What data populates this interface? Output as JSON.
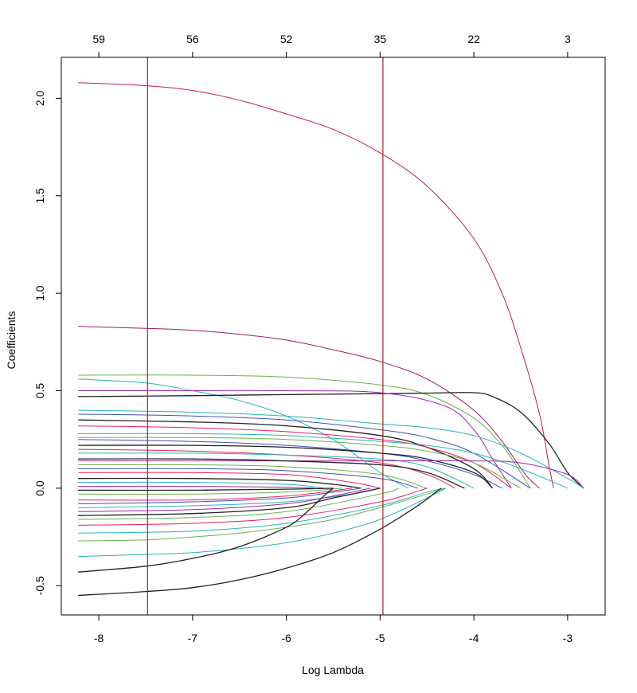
{
  "chart_data": {
    "type": "line",
    "title": "",
    "xlabel": "Log Lambda",
    "ylabel": "Coefficients",
    "xlim": [
      -8.4,
      -2.6
    ],
    "ylim": [
      -0.65,
      2.21
    ],
    "xticks": [
      -8,
      -7,
      -6,
      -5,
      -4,
      -3
    ],
    "xtick_labels": [
      "-8",
      "-7",
      "-6",
      "-5",
      "-4",
      "-3"
    ],
    "yticks": [
      -0.5,
      0.0,
      0.5,
      1.0,
      1.5,
      2.0
    ],
    "ytick_labels": [
      "-0.5",
      "0.0",
      "0.5",
      "1.0",
      "1.5",
      "2.0"
    ],
    "top_axis": {
      "x": [
        -8,
        -7,
        -6,
        -5,
        -4,
        -3
      ],
      "labels": [
        "59",
        "56",
        "52",
        "35",
        "22",
        "3"
      ]
    },
    "vlines": [
      {
        "x": -7.48,
        "color": "#b22222"
      },
      {
        "x": -4.97,
        "color": "#b22222"
      }
    ],
    "grid": false,
    "legend": "none",
    "series": [
      {
        "color": "#c2185b",
        "x": [
          -8.22,
          -7.5,
          -7.0,
          -6.5,
          -6.0,
          -5.5,
          -5.0,
          -4.5,
          -4.0,
          -3.7,
          -3.5,
          -3.3,
          -3.2,
          -3.15
        ],
        "values": [
          2.08,
          2.065,
          2.04,
          1.99,
          1.92,
          1.84,
          1.72,
          1.55,
          1.28,
          1.0,
          0.72,
          0.38,
          0.12,
          0.0
        ]
      },
      {
        "color": "#9c1b6e",
        "x": [
          -8.22,
          -7.5,
          -7.0,
          -6.5,
          -6.0,
          -5.5,
          -5.0,
          -4.5,
          -4.0,
          -3.7,
          -3.45,
          -3.3
        ],
        "values": [
          0.83,
          0.82,
          0.81,
          0.79,
          0.76,
          0.71,
          0.65,
          0.56,
          0.4,
          0.24,
          0.07,
          0.0
        ]
      },
      {
        "color": "#6ab04c",
        "x": [
          -8.22,
          -7.0,
          -6.0,
          -5.0,
          -4.5,
          -4.0,
          -3.7,
          -3.5,
          -3.4
        ],
        "values": [
          0.58,
          0.58,
          0.57,
          0.53,
          0.48,
          0.36,
          0.22,
          0.08,
          0.0
        ]
      },
      {
        "color": "#26b5b5",
        "x": [
          -8.22,
          -7.5,
          -7.0,
          -6.5,
          -6.0,
          -5.5,
          -5.0,
          -4.7
        ],
        "values": [
          0.56,
          0.54,
          0.5,
          0.45,
          0.37,
          0.25,
          0.08,
          0.0
        ]
      },
      {
        "color": "#222222",
        "x": [
          -8.22,
          -7.0,
          -6.0,
          -5.0,
          -4.5,
          -4.0,
          -3.8,
          -3.5,
          -3.2,
          -3.0,
          -2.83
        ],
        "values": [
          0.47,
          0.475,
          0.48,
          0.485,
          0.488,
          0.49,
          0.47,
          0.39,
          0.23,
          0.08,
          0.0
        ]
      },
      {
        "color": "#9c27b0",
        "x": [
          -8.22,
          -7.0,
          -6.0,
          -5.0,
          -4.3,
          -4.0,
          -3.8,
          -3.6
        ],
        "values": [
          0.5,
          0.5,
          0.5,
          0.49,
          0.42,
          0.3,
          0.15,
          0.0
        ]
      },
      {
        "color": "#26b5b5",
        "x": [
          -8.22,
          -7.0,
          -6.0,
          -5.0,
          -4.5,
          -4.0,
          -3.5,
          -3.0,
          -2.83
        ],
        "values": [
          0.4,
          0.39,
          0.37,
          0.33,
          0.31,
          0.27,
          0.18,
          0.05,
          0.0
        ]
      },
      {
        "color": "#3f51b5",
        "x": [
          -8.22,
          -7.0,
          -6.0,
          -5.0,
          -4.5,
          -4.0,
          -3.4
        ],
        "values": [
          0.38,
          0.37,
          0.35,
          0.3,
          0.26,
          0.18,
          0.0
        ]
      },
      {
        "color": "#222222",
        "x": [
          -8.22,
          -7.0,
          -6.0,
          -5.0,
          -4.5,
          -4.0,
          -3.8
        ],
        "values": [
          0.35,
          0.34,
          0.32,
          0.27,
          0.21,
          0.1,
          0.0
        ]
      },
      {
        "color": "#e91e63",
        "x": [
          -8.22,
          -7.0,
          -6.0,
          -5.0,
          -4.5,
          -4.0,
          -3.6
        ],
        "values": [
          0.32,
          0.31,
          0.29,
          0.25,
          0.21,
          0.13,
          0.0
        ]
      },
      {
        "color": "#26b5b5",
        "x": [
          -8.22,
          -7.0,
          -6.0,
          -5.0,
          -4.5,
          -4.0,
          -3.5,
          -3.0
        ],
        "values": [
          0.28,
          0.28,
          0.27,
          0.24,
          0.22,
          0.18,
          0.1,
          0.0
        ]
      },
      {
        "color": "#6ab04c",
        "x": [
          -8.22,
          -7.0,
          -6.0,
          -5.0,
          -4.5,
          -4.0,
          -3.5
        ],
        "values": [
          0.26,
          0.26,
          0.25,
          0.22,
          0.19,
          0.13,
          0.0
        ]
      },
      {
        "color": "#3f51b5",
        "x": [
          -8.22,
          -7.0,
          -6.0,
          -5.0,
          -4.5,
          -4.0,
          -3.7
        ],
        "values": [
          0.25,
          0.24,
          0.22,
          0.18,
          0.14,
          0.07,
          0.0
        ]
      },
      {
        "color": "#222222",
        "x": [
          -8.22,
          -7.0,
          -6.0,
          -5.0,
          -4.5,
          -4.0,
          -3.8
        ],
        "values": [
          0.22,
          0.22,
          0.21,
          0.18,
          0.15,
          0.08,
          0.0
        ]
      },
      {
        "color": "#e91e63",
        "x": [
          -8.22,
          -7.0,
          -6.0,
          -5.0,
          -4.5,
          -4.2
        ],
        "values": [
          0.2,
          0.19,
          0.17,
          0.13,
          0.07,
          0.0
        ]
      },
      {
        "color": "#26b5b5",
        "x": [
          -8.22,
          -7.0,
          -6.0,
          -5.0,
          -4.5,
          -4.0
        ],
        "values": [
          0.18,
          0.18,
          0.17,
          0.15,
          0.11,
          0.0
        ]
      },
      {
        "color": "#9c27b0",
        "x": [
          -8.22,
          -7.0,
          -6.0,
          -5.0,
          -4.0,
          -3.5,
          -3.0,
          -2.83
        ],
        "values": [
          0.14,
          0.14,
          0.14,
          0.14,
          0.14,
          0.13,
          0.07,
          0.0
        ]
      },
      {
        "color": "#222222",
        "x": [
          -8.22,
          -7.0,
          -6.0,
          -5.0,
          -4.5,
          -4.1
        ],
        "values": [
          0.15,
          0.15,
          0.14,
          0.12,
          0.08,
          0.0
        ]
      },
      {
        "color": "#6ab04c",
        "x": [
          -8.22,
          -7.0,
          -6.0,
          -5.0,
          -4.5
        ],
        "values": [
          0.12,
          0.12,
          0.11,
          0.07,
          0.0
        ]
      },
      {
        "color": "#3f51b5",
        "x": [
          -8.22,
          -7.0,
          -6.0,
          -5.0,
          -4.6
        ],
        "values": [
          0.1,
          0.1,
          0.09,
          0.05,
          0.0
        ]
      },
      {
        "color": "#e91e63",
        "x": [
          -8.22,
          -7.0,
          -6.0,
          -5.3,
          -5.0
        ],
        "values": [
          0.08,
          0.08,
          0.07,
          0.03,
          0.0
        ]
      },
      {
        "color": "#222222",
        "x": [
          -8.22,
          -7.0,
          -6.0,
          -5.5,
          -5.2
        ],
        "values": [
          0.05,
          0.05,
          0.04,
          0.02,
          0.0
        ]
      },
      {
        "color": "#26b5b5",
        "x": [
          -8.22,
          -7.0,
          -6.0,
          -5.6
        ],
        "values": [
          0.03,
          0.03,
          0.02,
          0.0
        ]
      },
      {
        "color": "#9c27b0",
        "x": [
          -8.22,
          -7.0,
          -6.0,
          -5.7
        ],
        "values": [
          0.01,
          0.01,
          0.005,
          0.0
        ]
      },
      {
        "color": "#222222",
        "x": [
          -8.22,
          -7.0,
          -6.0,
          -5.5
        ],
        "values": [
          -0.01,
          -0.01,
          -0.005,
          0.0
        ]
      },
      {
        "color": "#6ab04c",
        "x": [
          -8.22,
          -7.0,
          -6.0,
          -5.4
        ],
        "values": [
          -0.03,
          -0.03,
          -0.02,
          0.0
        ]
      },
      {
        "color": "#e91e63",
        "x": [
          -8.22,
          -7.0,
          -6.0,
          -5.3
        ],
        "values": [
          -0.06,
          -0.06,
          -0.04,
          0.0
        ]
      },
      {
        "color": "#3f51b5",
        "x": [
          -8.22,
          -7.0,
          -6.0,
          -5.5,
          -5.2
        ],
        "values": [
          -0.08,
          -0.07,
          -0.05,
          -0.02,
          0.0
        ]
      },
      {
        "color": "#26b5b5",
        "x": [
          -8.22,
          -7.0,
          -6.0,
          -5.3,
          -5.0
        ],
        "values": [
          -0.1,
          -0.09,
          -0.07,
          -0.03,
          0.0
        ]
      },
      {
        "color": "#9c27b0",
        "x": [
          -8.22,
          -7.0,
          -6.0,
          -5.5,
          -5.1
        ],
        "values": [
          -0.12,
          -0.11,
          -0.08,
          -0.04,
          0.0
        ]
      },
      {
        "color": "#222222",
        "x": [
          -8.22,
          -7.0,
          -6.0,
          -5.5,
          -5.0
        ],
        "values": [
          -0.14,
          -0.13,
          -0.1,
          -0.05,
          0.0
        ]
      },
      {
        "color": "#6ab04c",
        "x": [
          -8.22,
          -7.0,
          -6.0,
          -5.0,
          -4.8
        ],
        "values": [
          -0.16,
          -0.15,
          -0.12,
          -0.03,
          0.0
        ]
      },
      {
        "color": "#e91e63",
        "x": [
          -8.22,
          -7.0,
          -6.0,
          -5.0,
          -4.5
        ],
        "values": [
          -0.19,
          -0.18,
          -0.15,
          -0.07,
          0.0
        ]
      },
      {
        "color": "#26b5b5",
        "x": [
          -8.22,
          -7.0,
          -6.0,
          -5.0,
          -4.5,
          -4.3
        ],
        "values": [
          -0.23,
          -0.22,
          -0.18,
          -0.09,
          -0.02,
          0.0
        ]
      },
      {
        "color": "#6ab04c",
        "x": [
          -8.22,
          -7.5,
          -7.0,
          -6.5,
          -6.0,
          -5.5,
          -5.0,
          -4.5,
          -4.3
        ],
        "values": [
          -0.27,
          -0.265,
          -0.25,
          -0.23,
          -0.2,
          -0.16,
          -0.1,
          -0.03,
          0.0
        ]
      },
      {
        "color": "#26b5b5",
        "x": [
          -8.22,
          -7.5,
          -7.0,
          -6.5,
          -6.0,
          -5.5,
          -5.0,
          -4.5,
          -4.3
        ],
        "values": [
          -0.35,
          -0.34,
          -0.33,
          -0.31,
          -0.28,
          -0.23,
          -0.16,
          -0.05,
          0.0
        ]
      },
      {
        "color": "#222222",
        "x": [
          -8.22,
          -7.5,
          -7.0,
          -6.5,
          -6.0,
          -5.8,
          -5.6,
          -5.5
        ],
        "values": [
          -0.43,
          -0.4,
          -0.36,
          -0.3,
          -0.2,
          -0.13,
          -0.04,
          0.0
        ]
      },
      {
        "color": "#222222",
        "x": [
          -8.22,
          -7.5,
          -7.0,
          -6.5,
          -6.0,
          -5.5,
          -5.0,
          -4.6,
          -4.35
        ],
        "values": [
          -0.55,
          -0.53,
          -0.51,
          -0.47,
          -0.41,
          -0.33,
          -0.21,
          -0.09,
          0.0
        ]
      }
    ]
  }
}
